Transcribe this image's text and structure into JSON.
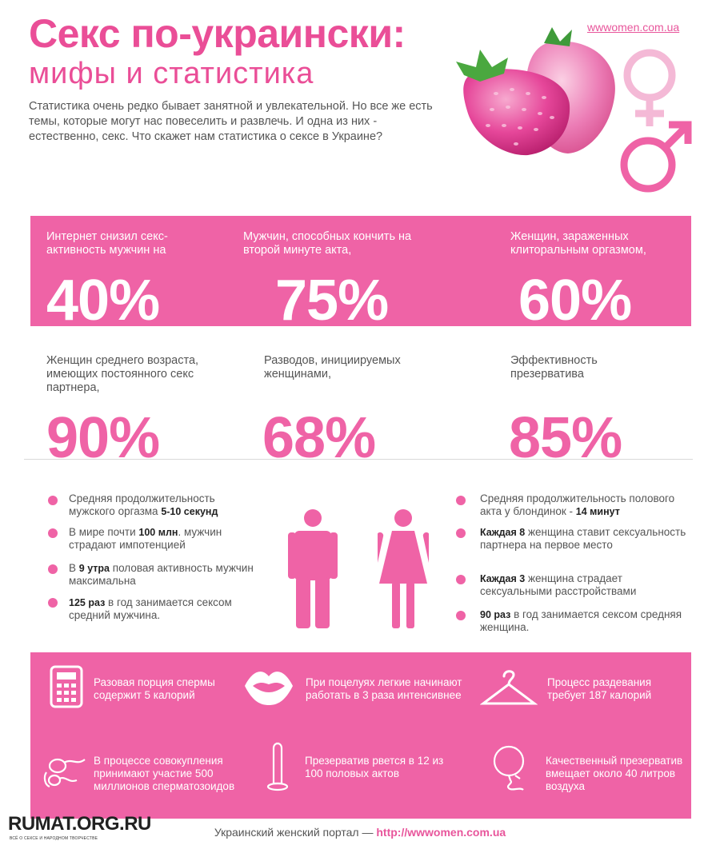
{
  "header": {
    "title": "Секс по-украински:",
    "subtitle": "мифы и статистика",
    "site": "wwwomen.com.ua",
    "intro": "Статистика очень редко бывает занятной и увлекательной. Но все же есть темы, которые могут нас повеселить и развлечь. И одна из них - естественно, секс. Что скажет нам статистика о сексе в Украине?"
  },
  "stats_row1": [
    {
      "label": "Интернет снизил секс-активность мужчин на",
      "value": "40%"
    },
    {
      "label": "Мужчин, способных кончить на второй минуте акта,",
      "value": "75%"
    },
    {
      "label": "Женщин, зараженных клиторальным оргазмом,",
      "value": "60%"
    }
  ],
  "stats_row2": [
    {
      "label": "Женщин среднего возраста, имеющих постоянного секс партнера,",
      "value": "90%"
    },
    {
      "label": "Разводов, инициируемых женщинами,",
      "value": "68%"
    },
    {
      "label": "Эффективность презерватива",
      "value": "85%"
    }
  ],
  "men_facts": [
    {
      "pre": "Средняя продолжительность мужского оргазма ",
      "bold": "5-10 секунд",
      "post": ""
    },
    {
      "pre": "В мире почти ",
      "bold": "100 млн",
      "post": ". мужчин страдают импотенцией"
    },
    {
      "pre": "В ",
      "bold": "9 утра",
      "post": " половая активность мужчин максимальна"
    },
    {
      "pre": "",
      "bold": "125 раз",
      "post": " в год занимается сексом средний мужчина."
    }
  ],
  "women_facts": [
    {
      "pre": "Средняя продолжительность полового акта у блондинок - ",
      "bold": "14 минут",
      "post": ""
    },
    {
      "pre": "",
      "bold": "Каждая 8",
      "post": " женщина ставит сексуальность партнера на первое место"
    },
    {
      "pre": "",
      "bold": "Каждая 3",
      "post": " женщина страдает сексуальными расстройствами"
    },
    {
      "pre": "",
      "bold": "90 раз",
      "post": " в год занимается сексом средняя женщина."
    }
  ],
  "icon_facts": [
    {
      "icon": "calculator-icon",
      "text": "Разовая порция спермы содержит 5 калорий"
    },
    {
      "icon": "lips-icon",
      "text": "При поцелуях легкие начинают работать в 3 раза интенсивнее"
    },
    {
      "icon": "hanger-icon",
      "text": "Процесс раздевания требует 187 калорий"
    },
    {
      "icon": "sperm-icon",
      "text": "В процессе совокупления принимают участие 500 миллионов сперматозоидов"
    },
    {
      "icon": "condom-icon",
      "text": "Презерватив рвется в 12 из 100 половых актов"
    },
    {
      "icon": "balloon-icon",
      "text": "Качественный презерватив вмещает около 40 литров воздуха"
    }
  ],
  "footer": {
    "text": "Украинский женский портал — ",
    "link": "http://wwwomen.com.ua"
  },
  "logo": {
    "name": "RUMAT.ORG.RU",
    "tagline": "ВСЁ О СЕКСЕ И НАРОДНОМ ТВОРЧЕСТВЕ"
  },
  "colors": {
    "accent": "#ef63a6",
    "title": "#ea4e97",
    "text": "#555555"
  }
}
